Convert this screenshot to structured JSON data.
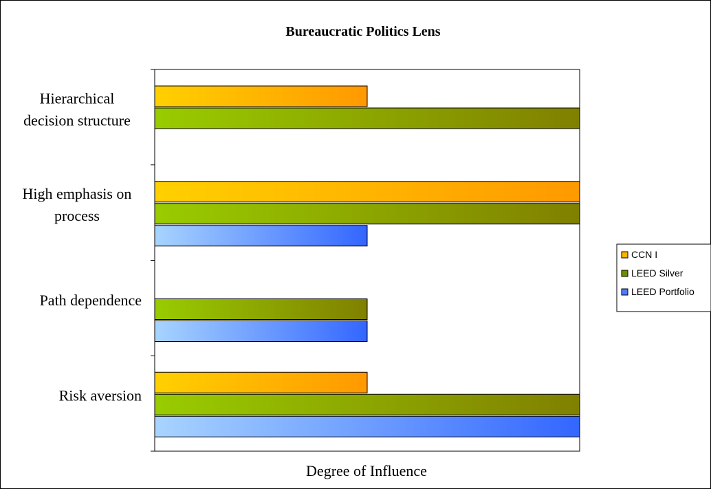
{
  "chart_data": {
    "type": "bar",
    "orientation": "horizontal",
    "title": "Bureaucratic Politics Lens",
    "xlabel": "Degree of Influence",
    "ylabel": "",
    "xlim": [
      0,
      2
    ],
    "grid": false,
    "legend_position": "right",
    "categories": [
      [
        "Hierarchical",
        "decision structure"
      ],
      [
        "High emphasis on",
        "process"
      ],
      [
        "Path dependence"
      ],
      [
        "Risk aversion"
      ]
    ],
    "series": [
      {
        "name": "CCN I",
        "values": [
          1,
          2,
          0,
          1
        ],
        "color_from": "#FFD000",
        "color_to": "#FF9900",
        "swatch": "#FFB300"
      },
      {
        "name": "LEED Silver",
        "values": [
          2,
          2,
          1,
          2
        ],
        "color_from": "#99CC00",
        "color_to": "#808000",
        "swatch": "#6B8E00"
      },
      {
        "name": "LEED Portfolio",
        "values": [
          0,
          1,
          1,
          2
        ],
        "color_from": "#A8D4FF",
        "color_to": "#3366FF",
        "swatch": "#4F7BFF"
      }
    ]
  }
}
